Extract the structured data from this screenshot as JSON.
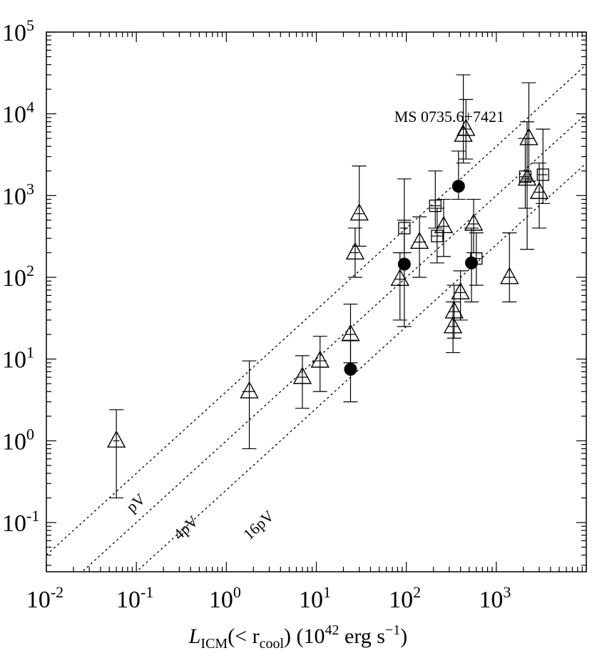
{
  "chart_data": {
    "type": "scatter",
    "xscale": "log",
    "yscale": "log",
    "xlim": [
      0.01,
      10000
    ],
    "ylim": [
      0.025,
      100000
    ],
    "xlabel": {
      "main": "L",
      "sub": "ICM",
      "rest1": "(< r",
      "sub2": "cool",
      "rest2": ") (10",
      "sup": "42",
      "rest3": " erg s",
      "sup2": "−1",
      "rest4": ")"
    },
    "x_ticks": [
      {
        "value": 0.01,
        "base": "10",
        "exp": "-2"
      },
      {
        "value": 0.1,
        "base": "10",
        "exp": "-1"
      },
      {
        "value": 1,
        "base": "10",
        "exp": "0"
      },
      {
        "value": 10,
        "base": "10",
        "exp": "1"
      },
      {
        "value": 100,
        "base": "10",
        "exp": "2"
      },
      {
        "value": 1000,
        "base": "10",
        "exp": "3"
      }
    ],
    "y_ticks": [
      {
        "value": 0.1,
        "base": "10",
        "exp": "-1"
      },
      {
        "value": 1,
        "base": "10",
        "exp": "0"
      },
      {
        "value": 10,
        "base": "10",
        "exp": "1"
      },
      {
        "value": 100,
        "base": "10",
        "exp": "2"
      },
      {
        "value": 1000,
        "base": "10",
        "exp": "3"
      },
      {
        "value": 10000,
        "base": "10",
        "exp": "4"
      },
      {
        "value": 100000,
        "base": "10",
        "exp": "5"
      }
    ],
    "reference_lines": [
      {
        "label": "pV",
        "factor": 4,
        "label_x": 0.09,
        "label_y": 0.13
      },
      {
        "label": "4pV",
        "factor": 1,
        "label_x": 0.3,
        "label_y": 0.06
      },
      {
        "label": "16pV",
        "factor": 0.25,
        "label_x": 1.8,
        "label_y": 0.06
      }
    ],
    "annotations": [
      {
        "text": "MS 0735.6+7421",
        "x": 300,
        "y": 8000
      }
    ],
    "series": [
      {
        "marker": "triangle",
        "points": [
          {
            "x": 0.06,
            "y": 1.0,
            "ylo": 0.2,
            "yhi": 2.4,
            "xlo": 0.055,
            "xhi": 0.065
          },
          {
            "x": 1.8,
            "y": 4.0,
            "ylo": 0.8,
            "yhi": 9.5,
            "xlo": 1.5,
            "xhi": 2.1
          },
          {
            "x": 7,
            "y": 6.0,
            "ylo": 2.5,
            "yhi": 11,
            "xlo": 6,
            "xhi": 8
          },
          {
            "x": 11,
            "y": 9.5,
            "ylo": 4.0,
            "yhi": 19,
            "xlo": 9,
            "xhi": 13
          },
          {
            "x": 24,
            "y": 20,
            "ylo": 9,
            "yhi": 47,
            "xlo": 21,
            "xhi": 27
          },
          {
            "x": 27,
            "y": 200,
            "ylo": 100,
            "yhi": 400,
            "xlo": 24,
            "xhi": 30
          },
          {
            "x": 30,
            "y": 600,
            "ylo": 240,
            "yhi": 2300,
            "xlo": 27,
            "xhi": 34
          },
          {
            "x": 85,
            "y": 95,
            "ylo": 30,
            "yhi": 200,
            "xlo": 75,
            "xhi": 97
          },
          {
            "x": 140,
            "y": 270,
            "ylo": 100,
            "yhi": 550,
            "xlo": 120,
            "xhi": 165
          },
          {
            "x": 260,
            "y": 420,
            "ylo": 180,
            "yhi": 900,
            "xlo": 220,
            "xhi": 300
          },
          {
            "x": 330,
            "y": 25,
            "ylo": 12,
            "yhi": 50,
            "xlo": 290,
            "xhi": 370
          },
          {
            "x": 340,
            "y": 38,
            "ylo": 18,
            "yhi": 80,
            "xlo": 300,
            "xhi": 385
          },
          {
            "x": 400,
            "y": 65,
            "ylo": 30,
            "yhi": 120,
            "xlo": 350,
            "xhi": 450
          },
          {
            "x": 430,
            "y": 5500,
            "ylo": 2500,
            "yhi": 30000,
            "xlo": 380,
            "xhi": 490
          },
          {
            "x": 460,
            "y": 6500,
            "ylo": 2800,
            "yhi": 15000,
            "xlo": 400,
            "xhi": 520
          },
          {
            "x": 560,
            "y": 450,
            "ylo": 200,
            "yhi": 900,
            "xlo": 490,
            "xhi": 640
          },
          {
            "x": 1400,
            "y": 100,
            "ylo": 50,
            "yhi": 350,
            "xlo": 1200,
            "xhi": 1600
          },
          {
            "x": 2200,
            "y": 1600,
            "ylo": 220,
            "yhi": 8000,
            "xlo": 1900,
            "xhi": 2500
          },
          {
            "x": 2300,
            "y": 5000,
            "ylo": 1500,
            "yhi": 24000,
            "xlo": 2000,
            "xhi": 2600
          },
          {
            "x": 3000,
            "y": 1100,
            "ylo": 400,
            "yhi": 2500,
            "xlo": 2600,
            "xhi": 3400
          }
        ]
      },
      {
        "marker": "circle",
        "points": [
          {
            "x": 24,
            "y": 7.5,
            "ylo": 3.0,
            "yhi": 17,
            "xlo": 21,
            "xhi": 27
          },
          {
            "x": 95,
            "y": 145,
            "ylo": 25,
            "yhi": 500,
            "xlo": 85,
            "xhi": 105
          },
          {
            "x": 380,
            "y": 1300,
            "ylo": 900,
            "yhi": 3500,
            "xlo": 330,
            "xhi": 430
          },
          {
            "x": 530,
            "y": 150,
            "ylo": 50,
            "yhi": 400,
            "xlo": 470,
            "xhi": 600
          }
        ]
      },
      {
        "marker": "square",
        "points": [
          {
            "x": 95,
            "y": 400,
            "ylo": 200,
            "yhi": 1600,
            "xlo": 85,
            "xhi": 105
          },
          {
            "x": 210,
            "y": 750,
            "ylo": 400,
            "yhi": 2000,
            "xlo": 185,
            "xhi": 240
          },
          {
            "x": 220,
            "y": 320,
            "ylo": 150,
            "yhi": 700,
            "xlo": 190,
            "xhi": 250
          },
          {
            "x": 600,
            "y": 170,
            "ylo": 80,
            "yhi": 350,
            "xlo": 530,
            "xhi": 680
          },
          {
            "x": 2100,
            "y": 1700,
            "ylo": 700,
            "yhi": 5000,
            "xlo": 1800,
            "xhi": 2400
          },
          {
            "x": 3300,
            "y": 1800,
            "ylo": 800,
            "yhi": 6500,
            "xlo": 2900,
            "xhi": 3700
          }
        ]
      }
    ]
  }
}
